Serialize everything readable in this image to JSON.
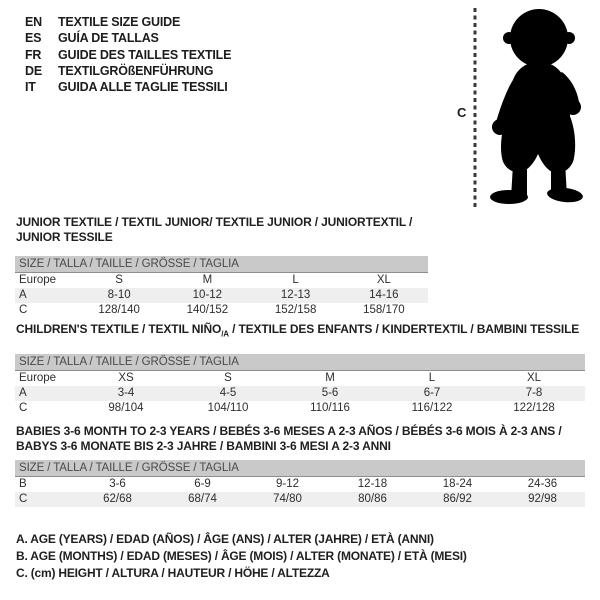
{
  "page": {
    "languages": [
      {
        "code": "EN",
        "label": "TEXTILE SIZE GUIDE"
      },
      {
        "code": "ES",
        "label": "GUÍA DE TALLAS"
      },
      {
        "code": "FR",
        "label": "GUIDE DES TAILLES TEXTILE"
      },
      {
        "code": "DE",
        "label": "TEXTILGRÖßENFÜHRUNG"
      },
      {
        "code": "IT",
        "label": "GUIDA ALLE TAGLIE TESSILI"
      }
    ],
    "figure": {
      "measure_label": "C",
      "icon": "toddler-silhouette"
    },
    "colors": {
      "size_bar_bg": "#c9c9c9",
      "alt_row_bg": "#efefef",
      "text": "#2e2e2e",
      "silhouette": "#000000"
    }
  },
  "tables": [
    {
      "title_lines": [
        [
          {
            "t": "JUNIOR TEXTILE / TEXTIL JUNIOR/ TEXTILE JUNIOR / JUNIORTEXTIL / JUNIOR TESSILE"
          }
        ]
      ],
      "size_header": "SIZE / TALLA / TAILLE / GRÖSSE / TAGLIA",
      "rows": [
        {
          "label": "Europe",
          "values": [
            "S",
            "M",
            "L",
            "XL"
          ]
        },
        {
          "label": "A",
          "values": [
            "8-10",
            "10-12",
            "12-13",
            "14-16"
          ]
        },
        {
          "label": "C",
          "values": [
            "128/140",
            "140/152",
            "152/158",
            "158/170"
          ]
        }
      ]
    },
    {
      "title_lines": [
        [
          {
            "t": "CHILDREN'S TEXTILE / TEXTIL NIÑO"
          },
          {
            "t": "/A",
            "sub": true
          },
          {
            "t": " / TEXTILE DES ENFANTS / KINDERTEXTIL / BAMBINI TESSILE"
          }
        ]
      ],
      "size_header": "SIZE / TALLA / TAILLE / GRÖSSE / TAGLIA",
      "rows": [
        {
          "label": "Europe",
          "values": [
            "XS",
            "S",
            "M",
            "L",
            "XL"
          ]
        },
        {
          "label": "A",
          "values": [
            "3-4",
            "4-5",
            "5-6",
            "6-7",
            "7-8"
          ]
        },
        {
          "label": "C",
          "values": [
            "98/104",
            "104/110",
            "110/116",
            "116/122",
            "122/128"
          ]
        }
      ]
    },
    {
      "title_lines": [
        [
          {
            "t": "BABIES 3-6 MONTH TO 2-3 YEARS / BEBÉS 3-6 MESES A 2-3 AÑOS / BÉBÉS 3-6 MOIS À 2-3 ANS /"
          }
        ],
        [
          {
            "t": "BABYS 3-6 MONATE BIS 2-3 JAHRE / BAMBINI 3-6 MESI A 2-3 ANNI"
          }
        ]
      ],
      "size_header": "SIZE / TALLA / TAILLE / GRÖSSE / TAGLIA",
      "rows": [
        {
          "label": "B",
          "values": [
            "3-6",
            "6-9",
            "9-12",
            "12-18",
            "18-24",
            "24-36"
          ]
        },
        {
          "label": "C",
          "values": [
            "62/68",
            "68/74",
            "74/80",
            "80/86",
            "86/92",
            "92/98"
          ]
        }
      ]
    }
  ],
  "footnotes": [
    "A. AGE (YEARS) / EDAD (AÑOS) / ÂGE (ANS) / ALTER (JAHRE) / ETÀ (ANNI)",
    "B. AGE (MONTHS) / EDAD (MESES) / ÂGE (MOIS) / ALTER (MONATE) / ETÀ (MESI)",
    "C. (cm) HEIGHT / ALTURA / HAUTEUR / HÖHE / ALTEZZA"
  ]
}
